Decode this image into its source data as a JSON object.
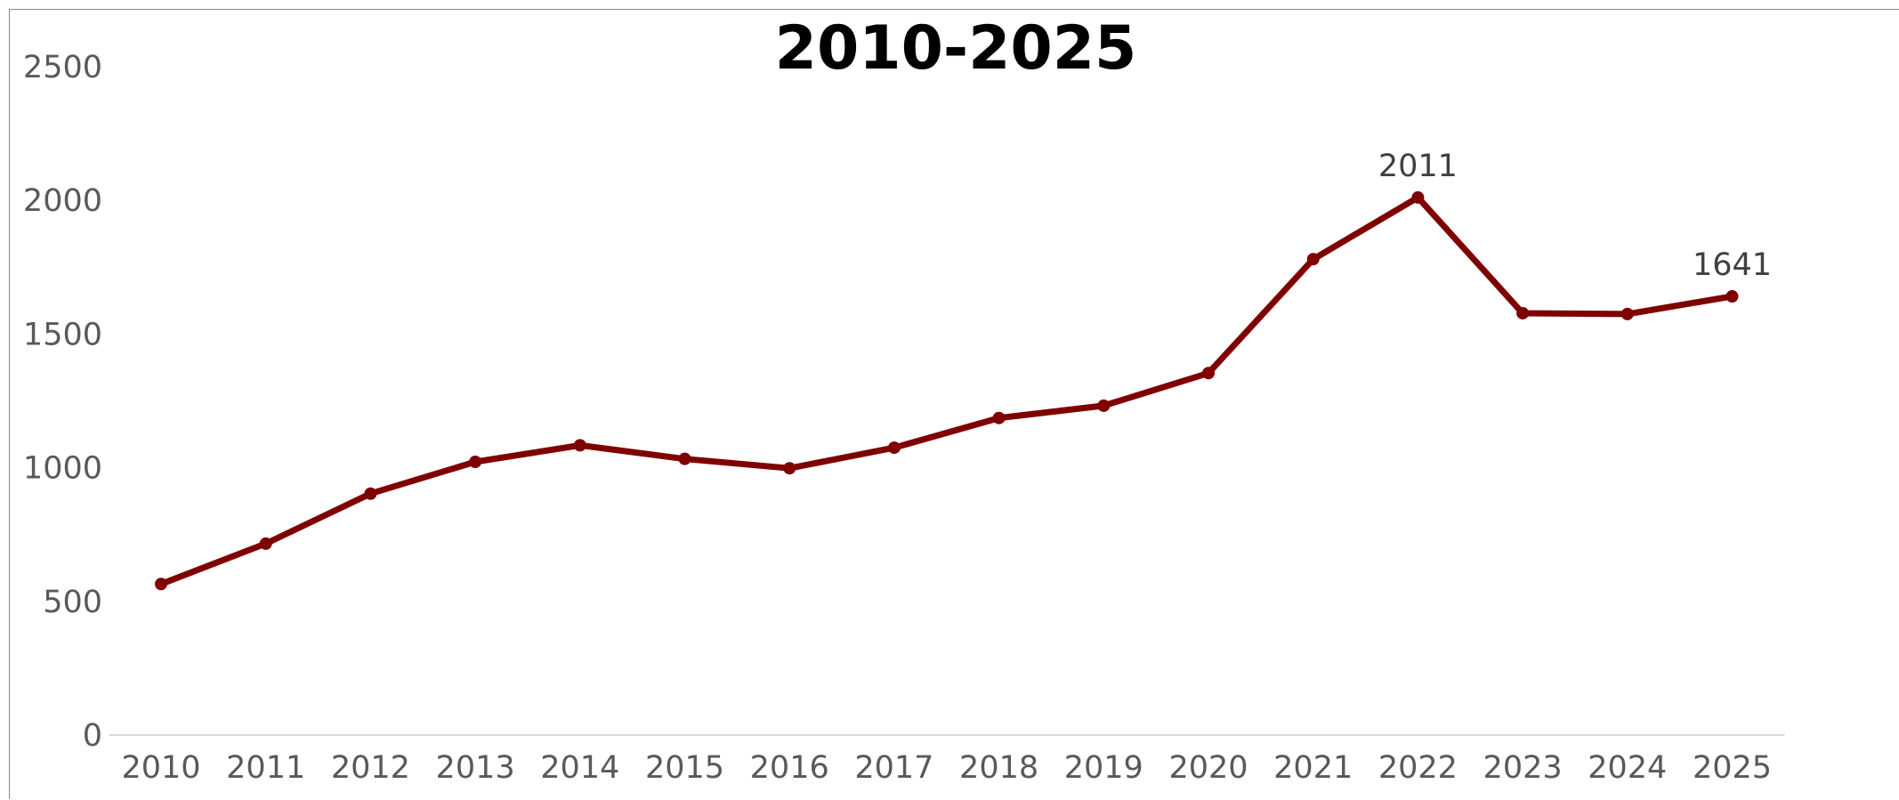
{
  "chart_data": {
    "type": "line",
    "title": "2010-2025",
    "xlabel": "",
    "ylabel": "",
    "x": [
      "2010",
      "2011",
      "2012",
      "2013",
      "2014",
      "2015",
      "2016",
      "2017",
      "2018",
      "2019",
      "2020",
      "2021",
      "2022",
      "2023",
      "2024",
      "2025"
    ],
    "series": [
      {
        "values": [
          565,
          716,
          903,
          1022,
          1084,
          1033,
          998,
          1075,
          1186,
          1232,
          1354,
          1780,
          2011,
          1578,
          1575,
          1641
        ],
        "color": "#7f0000"
      }
    ],
    "data_labels": [
      {
        "x": "2022",
        "text": "2011"
      },
      {
        "x": "2025",
        "text": "1641"
      }
    ],
    "ylim": [
      0,
      2500
    ],
    "yticks": [
      "0",
      "500",
      "1000",
      "1500",
      "2000",
      "2500"
    ],
    "grid": false,
    "legend": "none"
  }
}
